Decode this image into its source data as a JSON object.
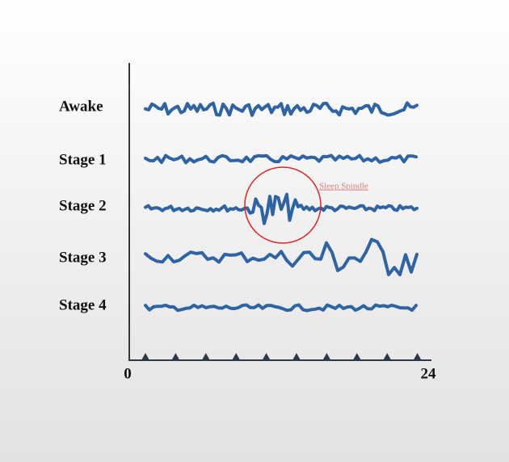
{
  "rows": [
    {
      "label": "Awake"
    },
    {
      "label": "Stage 1"
    },
    {
      "label": "Stage 2"
    },
    {
      "label": "Stage 3"
    },
    {
      "label": "Stage 4"
    }
  ],
  "annotation": "Sleep Spindle",
  "axis": {
    "start": 0,
    "end": 24
  }
}
